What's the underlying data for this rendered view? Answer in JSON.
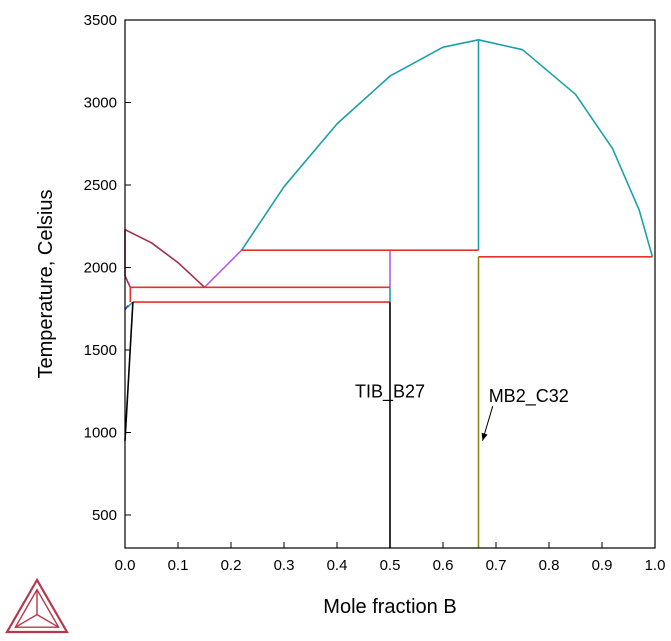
{
  "chart_data": {
    "type": "line",
    "title": "",
    "xlabel": "Mole fraction B",
    "ylabel": "Temperature, Celsius",
    "xlim": [
      0,
      1
    ],
    "ylim": [
      300,
      3500
    ],
    "x_ticks": [
      0.0,
      0.1,
      0.2,
      0.3,
      0.4,
      0.5,
      0.6,
      0.7,
      0.8,
      0.9,
      1.0
    ],
    "x_tick_labels": [
      "0.0",
      "0.1",
      "0.2",
      "0.3",
      "0.4",
      "0.5",
      "0.6",
      "0.7",
      "0.8",
      "0.9",
      "1.0"
    ],
    "y_ticks": [
      500,
      1000,
      1500,
      2000,
      2500,
      3000,
      3500
    ],
    "y_tick_labels": [
      "500",
      "1000",
      "1500",
      "2000",
      "2500",
      "3000",
      "3500"
    ],
    "grid": false,
    "legend": "none",
    "series": [
      {
        "color": "#1aa1a8",
        "x": [
          0.22,
          0.3,
          0.4,
          0.5,
          0.6,
          0.667,
          0.75,
          0.85,
          0.92,
          0.97,
          0.995
        ],
        "y": [
          2105,
          2490,
          2870,
          3160,
          3335,
          3380,
          3320,
          3050,
          2720,
          2350,
          2065
        ]
      },
      {
        "color": "#1aa1a8",
        "x": [
          0.667,
          0.667
        ],
        "y": [
          2105,
          3380
        ]
      },
      {
        "color": "#1aa1a8",
        "x": [
          0.5,
          0.5
        ],
        "y": [
          1790,
          1880
        ]
      },
      {
        "color": "#1aa1a8",
        "x": [
          0.005,
          0.015
        ],
        "y": [
          1760,
          1790
        ]
      },
      {
        "color": "#a0304d",
        "x": [
          0.0,
          0.05,
          0.1,
          0.15
        ],
        "y": [
          2230,
          2150,
          2030,
          1880
        ]
      },
      {
        "color": "#a0304d",
        "x": [
          0.0,
          0.0,
          0.01
        ],
        "y": [
          2230,
          1950,
          1880
        ]
      },
      {
        "color": "#b060e0",
        "x": [
          0.15,
          0.22
        ],
        "y": [
          1880,
          2105
        ]
      },
      {
        "color": "#b060e0",
        "x": [
          0.5,
          0.5
        ],
        "y": [
          1880,
          2105
        ]
      },
      {
        "color": "#e8302e",
        "x": [
          0.22,
          0.667
        ],
        "y": [
          2105,
          2105
        ]
      },
      {
        "color": "#e8302e",
        "x": [
          0.667,
          0.995
        ],
        "y": [
          2065,
          2065
        ]
      },
      {
        "color": "#e8302e",
        "x": [
          0.01,
          0.5
        ],
        "y": [
          1880,
          1880
        ]
      },
      {
        "color": "#e8302e",
        "x": [
          0.015,
          0.5
        ],
        "y": [
          1790,
          1790
        ]
      },
      {
        "color": "#e8302e",
        "x": [
          0.01,
          0.01
        ],
        "y": [
          1790,
          1880
        ]
      },
      {
        "color": "#2b3fd8",
        "x": [
          0.0,
          0.006
        ],
        "y": [
          1745,
          1770
        ]
      },
      {
        "color": "#000000",
        "x": [
          0.0,
          0.015
        ],
        "y": [
          950,
          1790
        ]
      },
      {
        "color": "#000000",
        "x": [
          0.5,
          0.5
        ],
        "y": [
          300,
          1790
        ]
      },
      {
        "color": "#8a8a1a",
        "x": [
          0.667,
          0.667
        ],
        "y": [
          300,
          2065
        ]
      }
    ],
    "annotations": [
      {
        "text": "TIB_B27",
        "x": 0.5,
        "y": 1250
      },
      {
        "text": "MB2_C32",
        "x": 0.69,
        "y": 1220,
        "arrow_to": [
          0.667,
          950
        ]
      }
    ]
  },
  "logo": {
    "name": "thermo-calc-logo",
    "color": "#b5394b"
  }
}
